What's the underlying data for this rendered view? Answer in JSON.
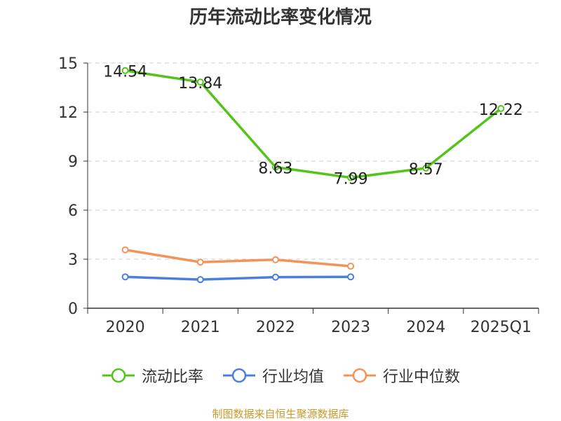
{
  "chart_data": {
    "type": "line",
    "title": "历年流动比率变化情况",
    "categories": [
      "2020",
      "2021",
      "2022",
      "2023",
      "2024",
      "2025Q1"
    ],
    "ylim": [
      0,
      15
    ],
    "yticks": [
      "0",
      "3",
      "6",
      "9",
      "12",
      "15"
    ],
    "grid": true,
    "legend_position": "bottom",
    "series": [
      {
        "name": "流动比率",
        "color": "#52c41a",
        "values": [
          14.54,
          13.84,
          8.63,
          7.99,
          8.57,
          12.22
        ],
        "labels": [
          "14.54",
          "13.84",
          "8.63",
          "7.99",
          "8.57",
          "12.22"
        ]
      },
      {
        "name": "行业均值",
        "color": "#4a7fdc",
        "values": [
          1.92,
          1.75,
          1.9,
          1.92,
          null,
          null
        ]
      },
      {
        "name": "行业中位数",
        "color": "#f5925a",
        "values": [
          3.57,
          2.82,
          2.97,
          2.57,
          null,
          null
        ]
      }
    ]
  },
  "source": "制图数据来自恒生聚源数据库"
}
